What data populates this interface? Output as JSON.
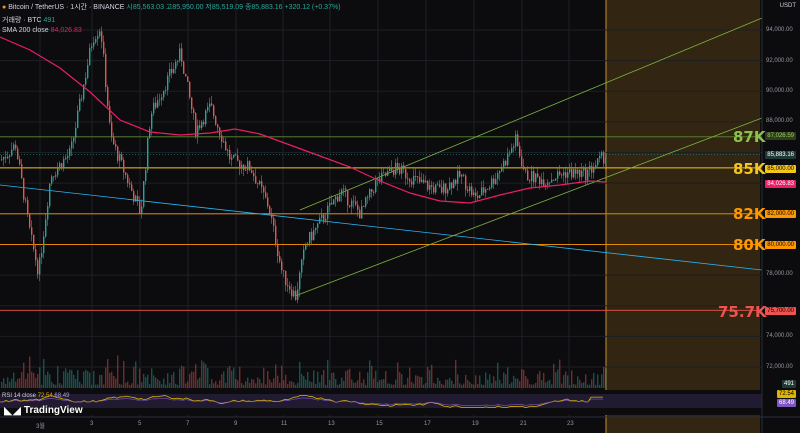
{
  "header": {
    "symbol": "Bitcoin / TetherUS · 1시간 · BINANCE",
    "ohlc": "시85,563.03 고85,950.00 저85,519.09 종85,883.16 +320.12 (+0.37%)",
    "volume_label": "거래량 · BTC",
    "volume_value": "491",
    "sma_label": "SMA 200 close",
    "sma_value": "84,026.83"
  },
  "currency": "USDT",
  "price_axis": [
    "94,000.00",
    "92,000.00",
    "90,000.00",
    "88,000.00",
    "78,000.00",
    "74,000.00",
    "72,000.00"
  ],
  "pills": {
    "p87": "87,026.59",
    "last": "85,883.16",
    "p85": "85,000.00",
    "sma": "84,026.83",
    "p82": "82,000.00",
    "p80": "80,000.00",
    "p757": "75,700.00"
  },
  "big_labels": {
    "l87": "87K",
    "l85": "85K",
    "l82": "82K",
    "l80": "80K",
    "l757": "75.7K"
  },
  "rsi": {
    "label": "RSI 14 close",
    "value1": "72.54",
    "value2": "68.49",
    "pill_vol": "491",
    "pill1": "72.54",
    "pill2": "68.49"
  },
  "time_axis": [
    "3월",
    "3",
    "5",
    "7",
    "9",
    "11",
    "13",
    "15",
    "17",
    "19",
    "21",
    "23"
  ],
  "brand": "TradingView",
  "colors": {
    "up": "#26a69a",
    "down": "#ef5350",
    "sma": "#e91e63",
    "level_yellow": "#f5c518",
    "level_orange": "#ff9800",
    "level_red": "#ef5350",
    "green_line": "#7cb342",
    "blue_line": "#29b6f6"
  }
}
